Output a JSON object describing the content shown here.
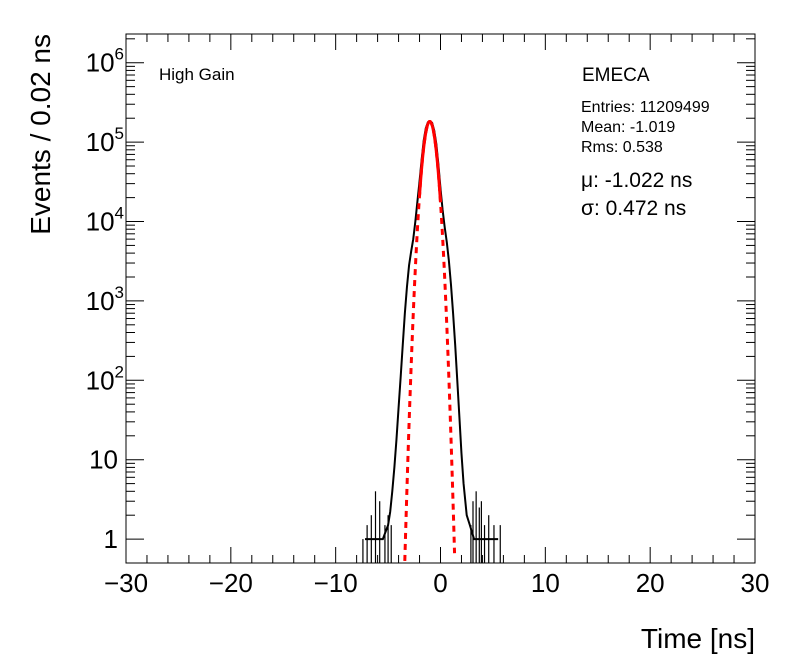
{
  "chart_data": {
    "type": "line",
    "xlabel": "Time [ns]",
    "ylabel": "Events / 0.02 ns",
    "x_range": [
      -30,
      30
    ],
    "y_range": [
      0.5,
      2300000
    ],
    "y_scale": "log",
    "x_ticks": [
      {
        "value": -30,
        "label": "−30"
      },
      {
        "value": -20,
        "label": "−20"
      },
      {
        "value": -10,
        "label": "−10"
      },
      {
        "value": 0,
        "label": "0"
      },
      {
        "value": 10,
        "label": "10"
      },
      {
        "value": 20,
        "label": "20"
      },
      {
        "value": 30,
        "label": "30"
      }
    ],
    "y_ticks": [
      {
        "value": 1,
        "label": "1",
        "sup": ""
      },
      {
        "value": 10,
        "label": "10",
        "sup": ""
      },
      {
        "value": 100,
        "label": "10",
        "sup": "2"
      },
      {
        "value": 1000,
        "label": "10",
        "sup": "3"
      },
      {
        "value": 10000,
        "label": "10",
        "sup": "4"
      },
      {
        "value": 100000,
        "label": "10",
        "sup": "5"
      },
      {
        "value": 1000000,
        "label": "10",
        "sup": "6"
      }
    ],
    "annotations": {
      "gain": "High Gain",
      "detector": "EMECA",
      "entries": "Entries: 11209499",
      "mean": "Mean: -1.019",
      "rms": "Rms: 0.538",
      "mu": "μ: -1.022 ns",
      "sigma": "σ: 0.472 ns"
    },
    "series": [
      {
        "kind": "histogram",
        "color": "#000000",
        "x": [
          -7.2,
          -6.8,
          -6.0,
          -5.5,
          -5.0,
          -4.8,
          -4.6,
          -4.4,
          -4.2,
          -4.0,
          -3.8,
          -3.6,
          -3.4,
          -3.2,
          -3.0,
          -2.8,
          -2.6,
          -2.4,
          -2.2,
          -2.0,
          -1.8,
          -1.6,
          -1.4,
          -1.2,
          -1.02,
          -0.8,
          -0.6,
          -0.4,
          -0.2,
          0.0,
          0.2,
          0.4,
          0.6,
          0.8,
          1.0,
          1.2,
          1.4,
          1.6,
          1.8,
          2.0,
          2.2,
          2.5,
          2.8,
          3.2,
          3.6,
          4.0,
          4.5,
          5.0,
          5.5
        ],
        "y": [
          1,
          1,
          1,
          1,
          1.5,
          2.2,
          4,
          8,
          18,
          45,
          110,
          280,
          700,
          1500,
          2800,
          4200,
          6000,
          10000,
          18000,
          32000,
          60000,
          105000,
          150000,
          178000,
          182000,
          175000,
          140000,
          95000,
          52000,
          26000,
          14000,
          8500,
          5500,
          3200,
          1600,
          700,
          280,
          100,
          35,
          12,
          5,
          2,
          1.5,
          1,
          1,
          1,
          1,
          1,
          1
        ]
      },
      {
        "kind": "gaussian-fit",
        "color": "#ff0000",
        "amplitude": 182000,
        "mean": -1.022,
        "sigma": 0.472,
        "solid_range": [
          -2.0,
          0.0
        ],
        "dashed_range": [
          -3.6,
          1.6
        ]
      }
    ],
    "noise_spikes": {
      "x": [
        -7.4,
        -7.0,
        -6.6,
        -6.2,
        -5.8,
        -5.3,
        -5.0,
        -4.7,
        2.9,
        3.1,
        3.4,
        3.7,
        3.9,
        4.2,
        4.6,
        5.1,
        5.7
      ],
      "y": [
        1,
        1.5,
        2,
        4,
        3,
        1.5,
        2,
        1.5,
        1.5,
        3,
        4,
        2.5,
        3,
        1.5,
        2,
        1.5,
        1.5
      ]
    }
  }
}
